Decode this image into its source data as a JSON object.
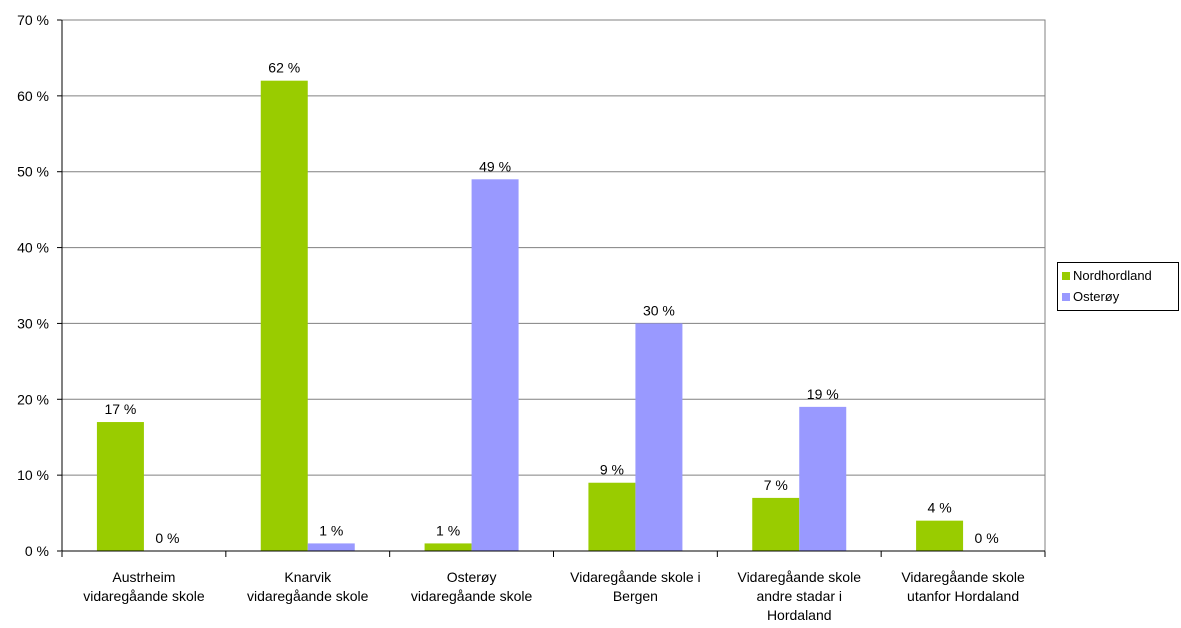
{
  "chart_data": {
    "type": "bar",
    "title": "",
    "xlabel": "",
    "ylabel": "",
    "ylim": [
      0,
      70
    ],
    "yticks": [
      "0 %",
      "10 %",
      "20 %",
      "30 %",
      "40 %",
      "50 %",
      "60 %",
      "70 %"
    ],
    "grid": true,
    "legend_position": "right",
    "categories": [
      [
        "Austrheim",
        "vidaregåande skole"
      ],
      [
        "Knarvik",
        "vidaregåande skole"
      ],
      [
        "Osterøy",
        "vidaregåande skole"
      ],
      [
        "Vidaregåande skole i",
        "Bergen"
      ],
      [
        "Vidaregåande skole",
        "andre stadar i",
        "Hordaland"
      ],
      [
        "Vidaregåande skole",
        "utanfor Hordaland"
      ]
    ],
    "series": [
      {
        "name": "Nordhordland",
        "color": "#99cc00",
        "values": [
          17,
          62,
          1,
          9,
          7,
          4
        ],
        "labels": [
          "17 %",
          "62 %",
          "1 %",
          "9 %",
          "7 %",
          "4 %"
        ]
      },
      {
        "name": "Osterøy",
        "color": "#9999ff",
        "values": [
          0,
          1,
          49,
          30,
          19,
          0
        ],
        "labels": [
          "0 %",
          "1 %",
          "49 %",
          "30 %",
          "19 %",
          "0 %"
        ]
      }
    ]
  }
}
